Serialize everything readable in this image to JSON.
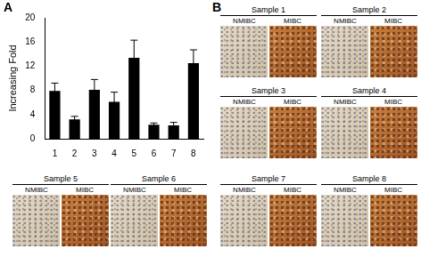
{
  "chart_data": {
    "type": "bar",
    "panel_label": "A",
    "y_label": "Increasing Fold",
    "categories": [
      "1",
      "2",
      "3",
      "4",
      "5",
      "6",
      "7",
      "8"
    ],
    "values": [
      7.9,
      3.2,
      8.1,
      6.1,
      13.4,
      2.3,
      2.2,
      12.5
    ],
    "errors": [
      1.3,
      0.5,
      1.7,
      1.6,
      2.9,
      0.3,
      0.5,
      2.2
    ],
    "color": "#000000",
    "ylim": [
      0,
      20
    ],
    "yticks": [
      0,
      4,
      8,
      12,
      16,
      20
    ],
    "grid": false
  },
  "panel_b": {
    "label": "B",
    "samples": [
      {
        "title": "Sample 1",
        "columns": [
          "NMIBC",
          "MIBC"
        ]
      },
      {
        "title": "Sample 2",
        "columns": [
          "NMIBC",
          "MIBC"
        ]
      },
      {
        "title": "Sample 3",
        "columns": [
          "NMIBC",
          "MIBC"
        ]
      },
      {
        "title": "Sample 4",
        "columns": [
          "NMIBC",
          "MIBC"
        ]
      },
      {
        "title": "Sample 5",
        "columns": [
          "NMIBC",
          "MIBC"
        ]
      },
      {
        "title": "Sample 6",
        "columns": [
          "NMIBC",
          "MIBC"
        ]
      },
      {
        "title": "Sample 7",
        "columns": [
          "NMIBC",
          "MIBC"
        ]
      },
      {
        "title": "Sample 8",
        "columns": [
          "NMIBC",
          "MIBC"
        ]
      }
    ]
  }
}
